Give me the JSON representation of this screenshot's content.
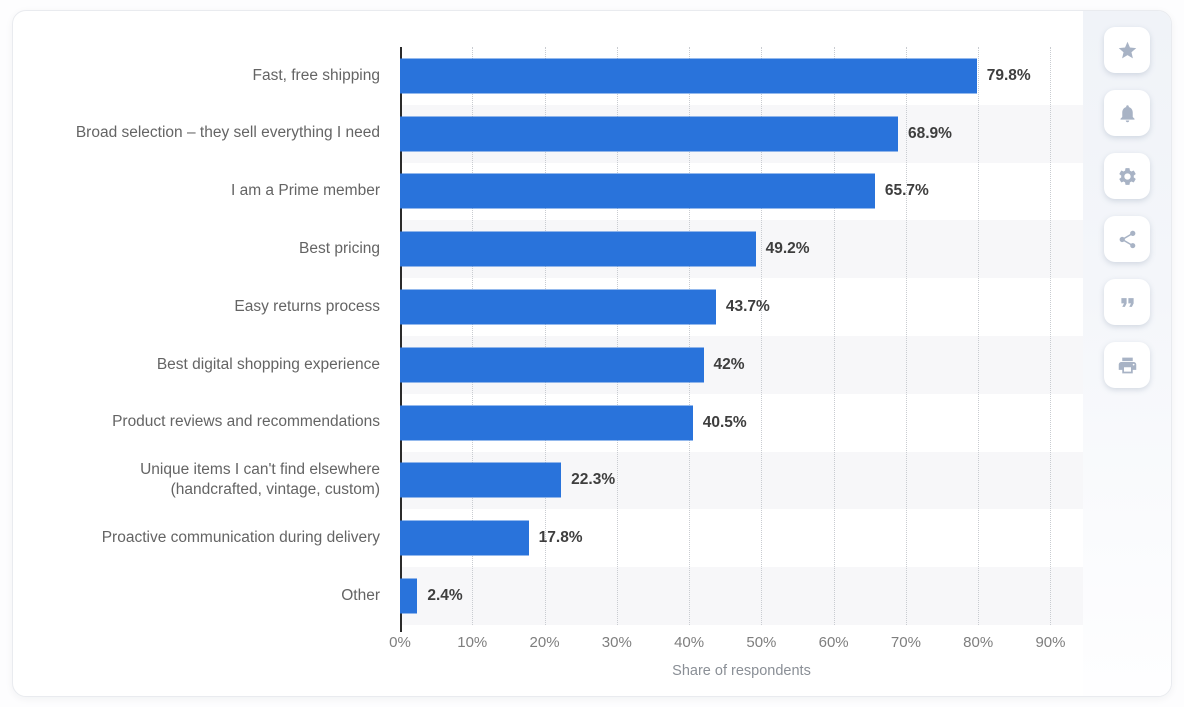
{
  "chart_data": {
    "type": "bar",
    "orientation": "horizontal",
    "title": "",
    "xlabel": "Share of respondents",
    "ylabel": "",
    "xlim": [
      0,
      90
    ],
    "x_tick_step": 10,
    "x_tick_labels": [
      "0%",
      "10%",
      "20%",
      "30%",
      "40%",
      "50%",
      "60%",
      "70%",
      "80%",
      "90%"
    ],
    "grid": "vertical-dotted",
    "legend": "none",
    "categories": [
      "Fast, free shipping",
      "Broad selection – they sell everything I need",
      "I am a Prime member",
      "Best pricing",
      "Easy returns process",
      "Best digital shopping experience",
      "Product reviews and recommendations",
      "Unique items I can't find elsewhere (handcrafted, vintage, custom)",
      "Proactive communication during delivery",
      "Other"
    ],
    "values": [
      79.8,
      68.9,
      65.7,
      49.2,
      43.7,
      42,
      40.5,
      22.3,
      17.8,
      2.4
    ],
    "value_labels": [
      "79.8%",
      "68.9%",
      "65.7%",
      "49.2%",
      "43.7%",
      "42%",
      "40.5%",
      "22.3%",
      "17.8%",
      "2.4%"
    ],
    "colors": {
      "bar": "#2973db",
      "row_stripe": "#f7f7f9",
      "axis_line": "#2b2b2b",
      "gridline": "#c9ccd1",
      "category_label": "#646464",
      "value_label": "#3e3e3e",
      "tick_label": "#7e7e7e",
      "axis_title": "#8a8f96"
    }
  },
  "toolbar": {
    "buttons": [
      {
        "name": "favorite-button",
        "icon": "star-icon"
      },
      {
        "name": "notifications-button",
        "icon": "bell-icon"
      },
      {
        "name": "settings-button",
        "icon": "gear-icon"
      },
      {
        "name": "share-button",
        "icon": "share-icon"
      },
      {
        "name": "cite-button",
        "icon": "quote-icon"
      },
      {
        "name": "print-button",
        "icon": "print-icon"
      }
    ]
  }
}
